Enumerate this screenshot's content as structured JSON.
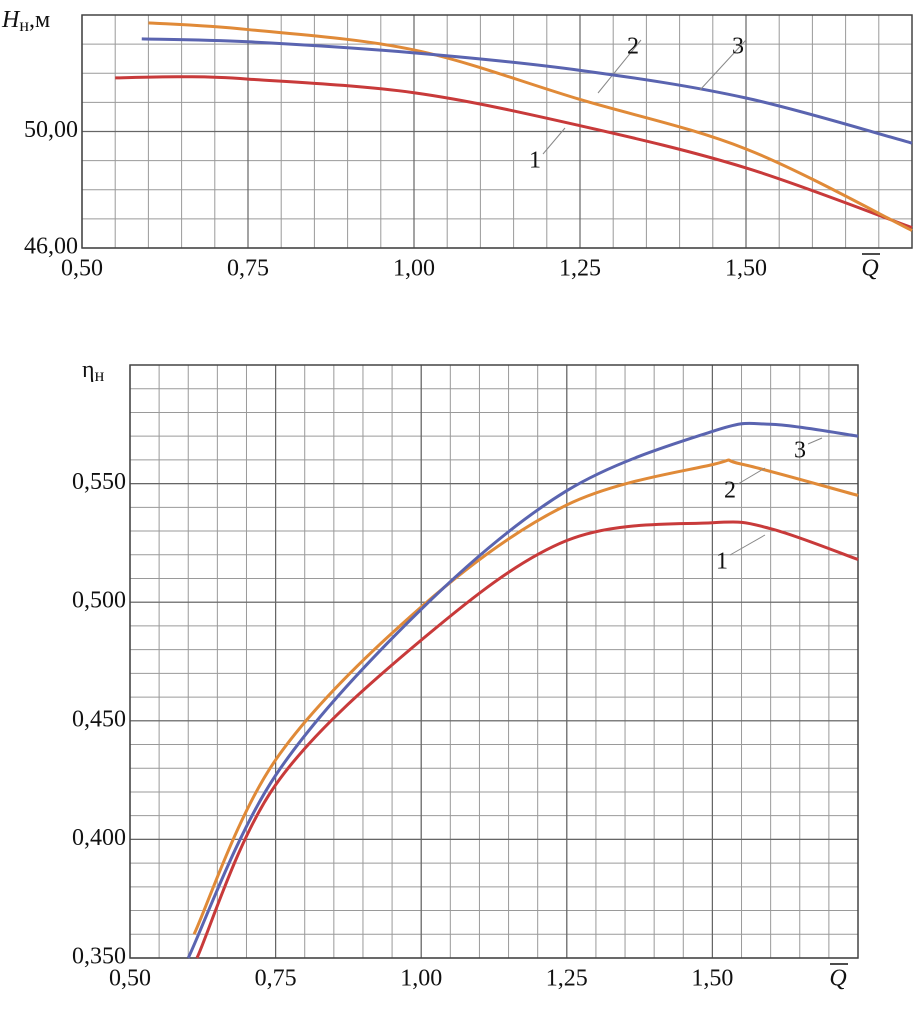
{
  "chart_data": [
    {
      "type": "line",
      "ylabel": {
        "main": "H",
        "sub": "н",
        "suffix": ",м"
      },
      "xlabel": "Q",
      "xlim": [
        0.5,
        1.75
      ],
      "xticks": [
        {
          "value": 0.5,
          "label": "0,50"
        },
        {
          "value": 0.75,
          "label": "0,75"
        },
        {
          "value": 1.0,
          "label": "1,00"
        },
        {
          "value": 1.25,
          "label": "1,25"
        },
        {
          "value": 1.5,
          "label": "1,50"
        }
      ],
      "ylim": [
        46,
        54
      ],
      "yticks": [
        {
          "value": 46,
          "label": "46,00"
        },
        {
          "value": 50,
          "label": "50,00"
        }
      ],
      "grid": true,
      "series": [
        {
          "name": "1",
          "color": "#c83a3a",
          "x": [
            0.55,
            0.65,
            0.75,
            1.0,
            1.25,
            1.5,
            1.75
          ],
          "values": [
            51.84,
            51.88,
            51.8,
            51.33,
            50.2,
            48.75,
            46.7
          ]
        },
        {
          "name": "2",
          "color": "#e08a38",
          "x": [
            0.6,
            0.75,
            1.0,
            1.25,
            1.5,
            1.75
          ],
          "values": [
            53.73,
            53.5,
            52.8,
            51.1,
            49.4,
            46.6
          ]
        },
        {
          "name": "3",
          "color": "#5a64b0",
          "x": [
            0.59,
            0.75,
            1.0,
            1.25,
            1.5,
            1.75
          ],
          "values": [
            53.18,
            53.08,
            52.7,
            52.1,
            51.15,
            49.6
          ]
        }
      ]
    },
    {
      "type": "line",
      "ylabel": {
        "main": "η",
        "sub": "н",
        "suffix": ""
      },
      "xlabel": "Q",
      "xlim": [
        0.5,
        1.75
      ],
      "xticks": [
        {
          "value": 0.5,
          "label": "0,50"
        },
        {
          "value": 0.75,
          "label": "0,75"
        },
        {
          "value": 1.0,
          "label": "1,00"
        },
        {
          "value": 1.25,
          "label": "1,25"
        },
        {
          "value": 1.5,
          "label": "1,50"
        }
      ],
      "ylim": [
        0.35,
        0.6
      ],
      "yticks": [
        {
          "value": 0.35,
          "label": "0,350"
        },
        {
          "value": 0.4,
          "label": "0,400"
        },
        {
          "value": 0.45,
          "label": "0,450"
        },
        {
          "value": 0.5,
          "label": "0,500"
        },
        {
          "value": 0.55,
          "label": "0,550"
        }
      ],
      "grid": true,
      "series": [
        {
          "name": "1",
          "color": "#c83a3a",
          "x": [
            0.615,
            0.75,
            1.0,
            1.25,
            1.5,
            1.6,
            1.75
          ],
          "values": [
            0.35,
            0.423,
            0.484,
            0.526,
            0.5335,
            0.531,
            0.518
          ]
        },
        {
          "name": "2",
          "color": "#e08a38",
          "x": [
            0.61,
            0.75,
            1.0,
            1.25,
            1.5,
            1.55,
            1.75
          ],
          "values": [
            0.36,
            0.4335,
            0.498,
            0.541,
            0.558,
            0.5582,
            0.545
          ]
        },
        {
          "name": "3",
          "color": "#5a64b0",
          "x": [
            0.6,
            0.75,
            1.0,
            1.25,
            1.5,
            1.6,
            1.75
          ],
          "values": [
            0.35,
            0.427,
            0.497,
            0.547,
            0.572,
            0.575,
            0.57
          ]
        }
      ]
    }
  ]
}
